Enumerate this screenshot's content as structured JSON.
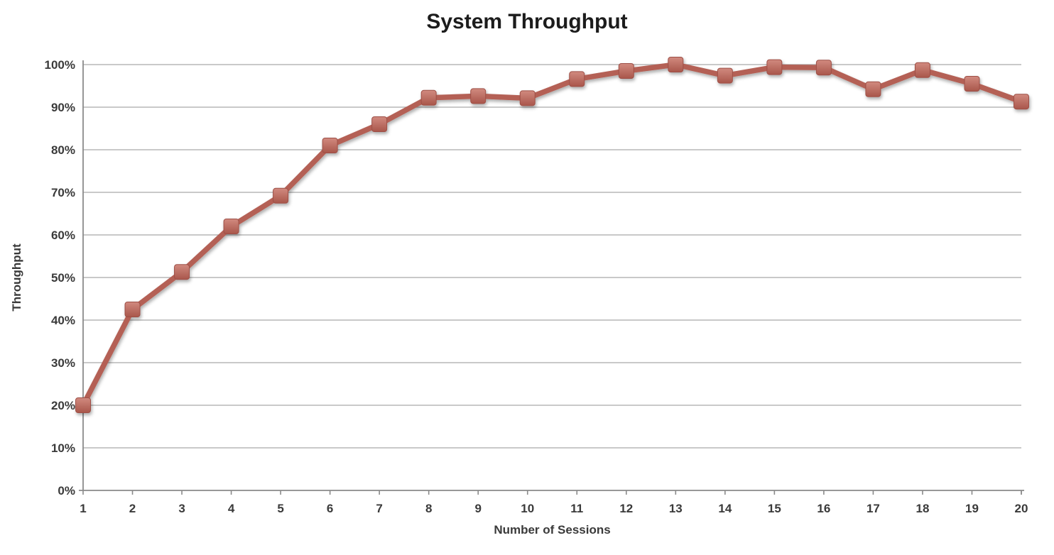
{
  "chart_data": {
    "type": "line",
    "title": "System Throughput",
    "xlabel": "Number of Sessions",
    "ylabel": "Throughput",
    "x": [
      1,
      2,
      3,
      4,
      5,
      6,
      7,
      8,
      9,
      10,
      11,
      12,
      13,
      14,
      15,
      16,
      17,
      18,
      19,
      20
    ],
    "series": [
      {
        "name": "Throughput",
        "values": [
          20.0,
          42.5,
          51.3,
          62.0,
          69.2,
          81.0,
          86.0,
          92.2,
          92.6,
          92.1,
          96.6,
          98.5,
          100.0,
          97.4,
          99.4,
          99.3,
          94.2,
          98.7,
          95.5,
          91.3
        ]
      }
    ],
    "x_tick_labels": [
      "1",
      "2",
      "3",
      "4",
      "5",
      "6",
      "7",
      "8",
      "9",
      "10",
      "11",
      "12",
      "13",
      "14",
      "15",
      "16",
      "17",
      "18",
      "19",
      "20"
    ],
    "y_tick_labels": [
      "0%",
      "10%",
      "20%",
      "30%",
      "40%",
      "50%",
      "60%",
      "70%",
      "80%",
      "90%",
      "100%"
    ],
    "ylim": [
      0,
      100
    ],
    "y_tick_step": 10,
    "grid": "horizontal",
    "legend": "none",
    "marker": "square",
    "colors": {
      "line": "#b46055",
      "marker_gradient_top": "#d18a7f",
      "marker_gradient_bottom": "#a9564b",
      "marker_stroke": "#9e5046",
      "gridline": "#b7b7b7",
      "axis": "#8a8a8a",
      "tick_text": "#3a3a3a",
      "title_text": "#1c1c1c",
      "background": "#ffffff"
    }
  }
}
